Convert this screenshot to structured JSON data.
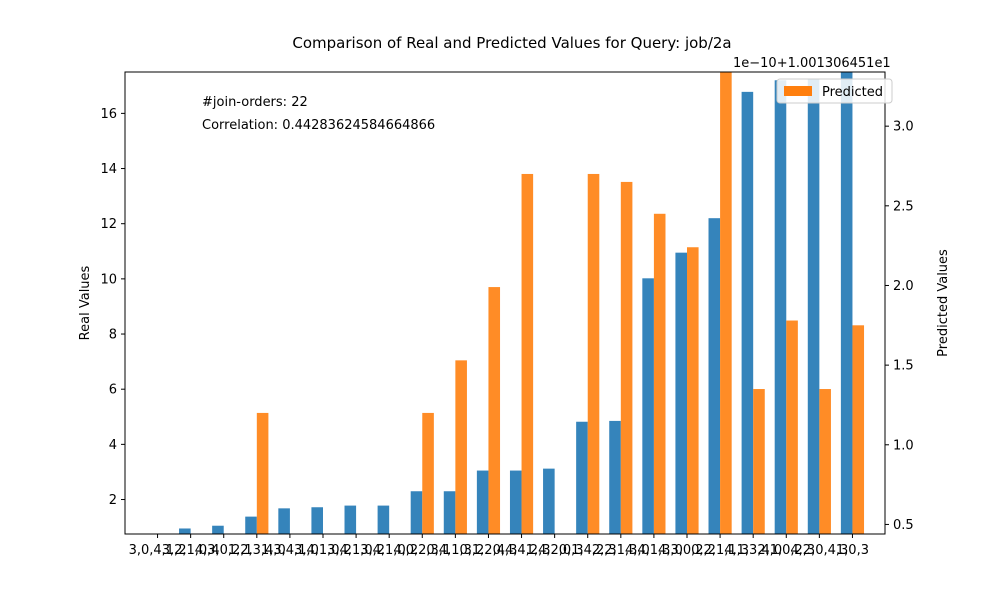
{
  "chart_data": {
    "type": "bar",
    "title": "Comparison of Real and Predicted Values for Query: job/2a",
    "xlabel": "",
    "ylabel": "Real Values",
    "y2label": "Predicted Values",
    "y2_offset_label": "1e−10+1.001306451e1",
    "ylim": [
      0.75,
      17.5
    ],
    "y2lim": [
      0.44,
      3.34
    ],
    "y_ticks": [
      2,
      4,
      6,
      8,
      10,
      12,
      14,
      16
    ],
    "y2_ticks": [
      0.5,
      1.0,
      1.5,
      2.0,
      2.5,
      3.0
    ],
    "annotations": [
      "#join-orders: 22",
      "Correlation: 0.44283624584664866"
    ],
    "legend": {
      "position": "top-right",
      "entries": [
        "Predicted"
      ]
    },
    "categories": [
      "3,0,4,1,2",
      "3,2,1,0,4",
      "4,3,0,2,1",
      "1,2,3,4,0",
      "1,3,4,1,0",
      "3,4,1,0,2",
      "3,4,1,0,2",
      "3,4,1,0,2",
      "4,0,2,3,1",
      "0,4,1,3,2",
      "0,1,2,4,3",
      "0,4,4,2,3",
      "1,4,2,0,3",
      "0,1,4,2,3",
      "2,2,1,3,0",
      "4,4,1,3,0",
      "4,3,0,2,2",
      "0,2,1,1,3",
      "4,1,3,4,0",
      "2,1,0,2,3",
      "4,2,0,4,3",
      "1,0,3"
    ],
    "series": [
      {
        "name": "",
        "axis": "left",
        "color": "#1f77b4",
        "values": [
          0.3,
          0.95,
          1.05,
          1.38,
          1.68,
          1.72,
          1.78,
          1.78,
          2.3,
          2.3,
          3.05,
          3.05,
          3.12,
          4.82,
          4.85,
          10.02,
          10.95,
          12.2,
          16.78,
          17.2,
          17.25,
          17.6
        ]
      },
      {
        "name": "Predicted",
        "axis": "right",
        "color": "#ff7f0e",
        "values": [
          0.3,
          0.3,
          0.3,
          1.2,
          0.3,
          0.3,
          0.3,
          0.3,
          1.2,
          1.53,
          1.99,
          2.7,
          0.3,
          2.7,
          2.65,
          2.45,
          2.24,
          3.4,
          1.35,
          1.78,
          1.35,
          1.75
        ]
      }
    ]
  }
}
